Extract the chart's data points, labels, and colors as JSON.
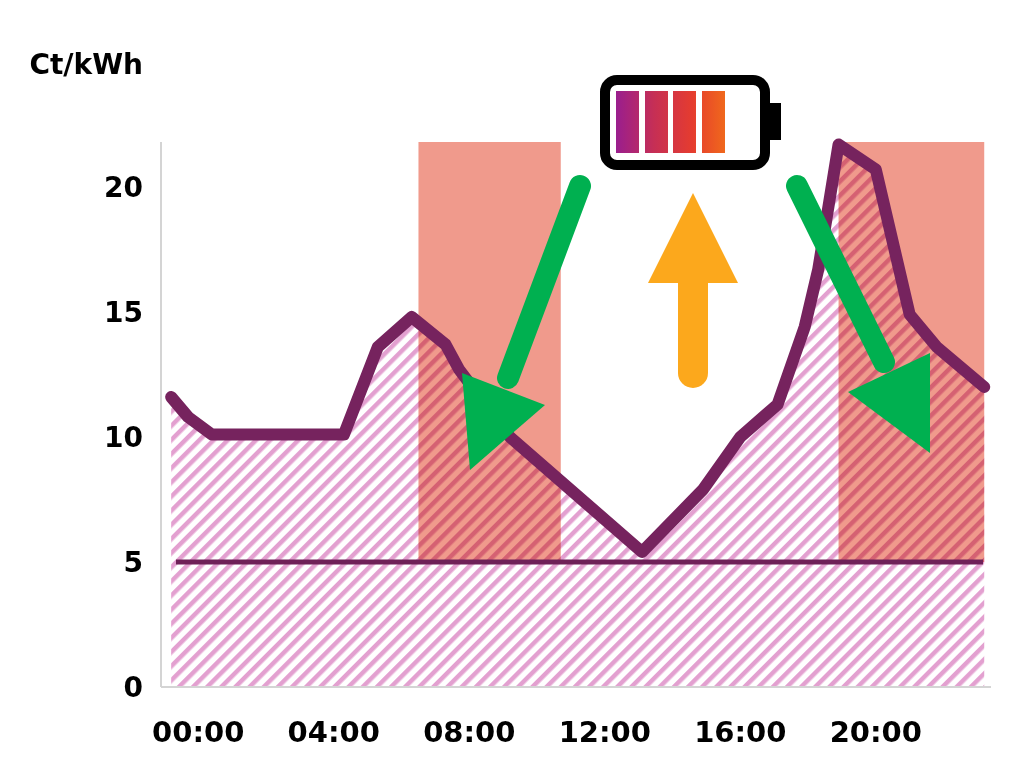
{
  "chart_data": {
    "type": "area",
    "ylabel": "Ct/kWh",
    "x": [
      -0.8,
      -0.3,
      0.1,
      0.4,
      4.3,
      5.3,
      6.3,
      7.3,
      7.7,
      9.2,
      13.1,
      14.9,
      16.0,
      17.1,
      17.9,
      18.3,
      18.9,
      20.0,
      21.0,
      21.8,
      22.5,
      23.2
    ],
    "series": [
      {
        "color": "#76235e",
        "values": [
          11.6,
          10.8,
          10.4,
          10.1,
          10.1,
          13.6,
          14.8,
          13.7,
          12.7,
          10.0,
          5.4,
          7.9,
          10.0,
          11.3,
          14.4,
          16.7,
          21.7,
          20.7,
          14.9,
          13.6,
          12.8,
          12.0
        ]
      }
    ],
    "xlim": [
      -1.1,
      23.4
    ],
    "xticks": [
      {
        "value": 0,
        "label": "00:00"
      },
      {
        "value": 4,
        "label": "04:00"
      },
      {
        "value": 8,
        "label": "08:00"
      },
      {
        "value": 12,
        "label": "12:00"
      },
      {
        "value": 16,
        "label": "16:00"
      },
      {
        "value": 20,
        "label": "20:00"
      }
    ],
    "ylim": [
      0,
      21.8
    ],
    "yticks": [
      0,
      5,
      10,
      15,
      20
    ],
    "ref_lines": [
      {
        "axis": "y",
        "value": 5,
        "color": "#6f2158"
      }
    ],
    "bands": [
      {
        "axis": "x",
        "from": 6.5,
        "to": 10.7,
        "color": "#f09a8c"
      },
      {
        "axis": "x",
        "from": 18.9,
        "to": 23.2,
        "color": "#f09a8c"
      }
    ],
    "line_style": "solid"
  }
}
